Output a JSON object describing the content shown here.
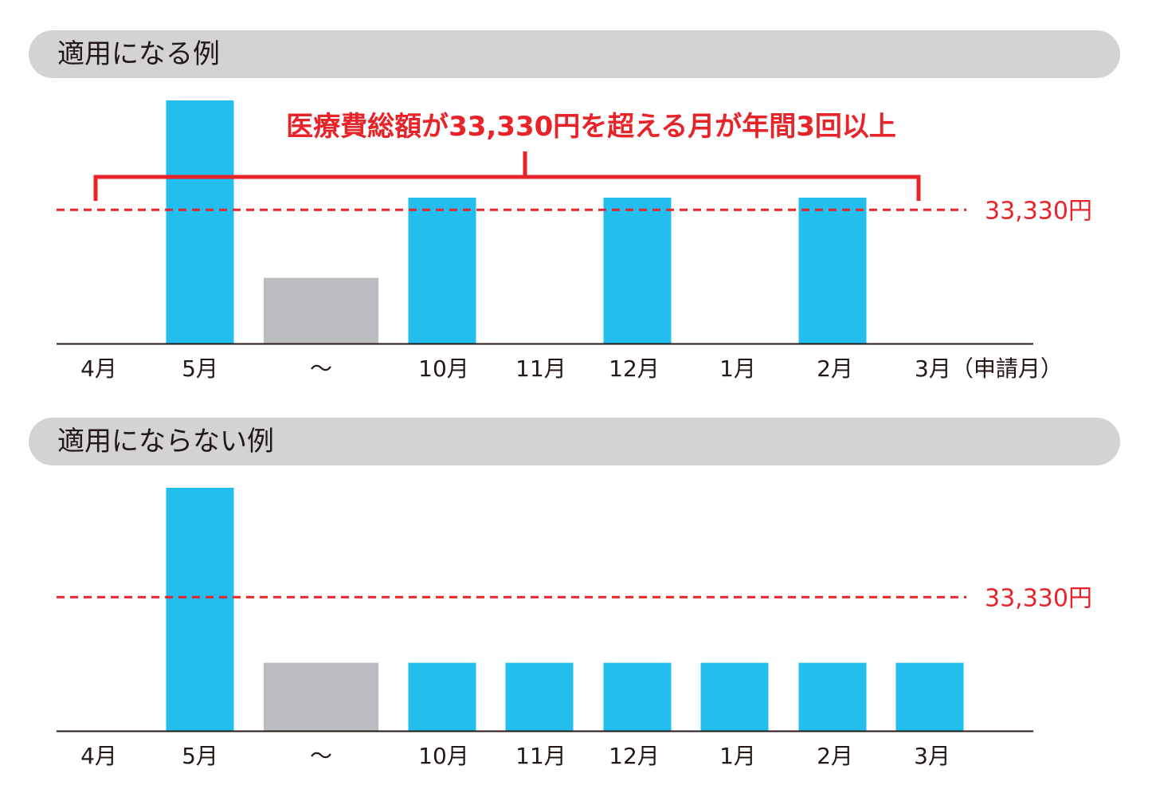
{
  "colors": {
    "highlight_bar": "#22bfee",
    "gap_bar": "#bcbdc0",
    "threshold": "#e8242a",
    "header_bg": "#d3d3d5",
    "axis": "#231815"
  },
  "chart_data": [
    {
      "type": "bar",
      "title": "適用になる例",
      "categories": [
        "4月",
        "5月",
        "～",
        "10月",
        "11月",
        "12月",
        "1月",
        "2月",
        "3月（申請月）"
      ],
      "values": [
        0,
        100,
        27,
        60,
        0,
        60,
        0,
        60,
        0
      ],
      "segment": [
        "",
        "above",
        "gap",
        "above",
        "",
        "above",
        "",
        "above",
        ""
      ],
      "threshold": {
        "value": 55,
        "label": "33,330円"
      },
      "annotation": "医療費総額が33,330円を超える月が年間3回以上",
      "ylim": [
        0,
        100
      ],
      "grid": false,
      "legend": "none"
    },
    {
      "type": "bar",
      "title": "適用にならない例",
      "categories": [
        "4月",
        "5月",
        "～",
        "10月",
        "11月",
        "12月",
        "1月",
        "2月",
        "3月"
      ],
      "values": [
        0,
        100,
        28,
        28,
        28,
        28,
        28,
        28,
        28
      ],
      "segment": [
        "",
        "above",
        "gap",
        "below",
        "below",
        "below",
        "below",
        "below",
        "below"
      ],
      "threshold": {
        "value": 55,
        "label": "33,330円"
      },
      "ylim": [
        0,
        100
      ],
      "grid": false,
      "legend": "none"
    }
  ]
}
